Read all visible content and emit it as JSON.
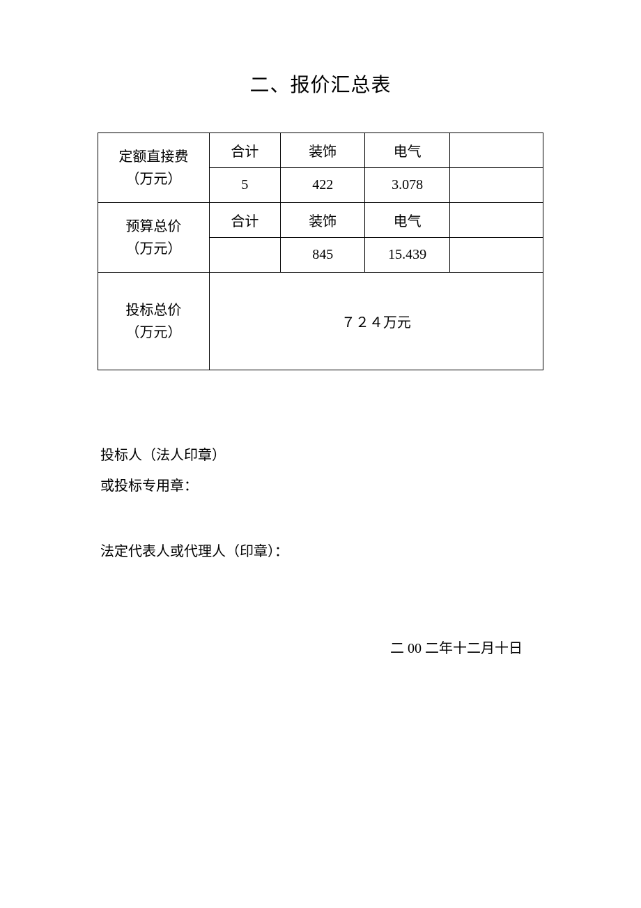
{
  "title": "二、报价汇总表",
  "table": {
    "row1": {
      "label": "定额直接费\n（万元）",
      "headers": {
        "c1": "合计",
        "c2": "装饰",
        "c3": "电气",
        "c4": ""
      },
      "values": {
        "c1": "5",
        "c2": "422",
        "c3": "3.078",
        "c4": ""
      }
    },
    "row2": {
      "label": "预算总价\n（万元）",
      "headers": {
        "c1": "合计",
        "c2": "装饰",
        "c3": "电气",
        "c4": ""
      },
      "values": {
        "c1": "",
        "c2": "845",
        "c3": "15.439",
        "c4": ""
      }
    },
    "row3": {
      "label": "投标总价\n（万元）",
      "merged_value": "７２４万元"
    }
  },
  "signatures": {
    "line1": "投标人（法人印章）",
    "line2": "或投标专用章：",
    "line3": "法定代表人或代理人（印章）："
  },
  "date": "二 00 二年十二月十日",
  "style": {
    "background_color": "#ffffff",
    "text_color": "#000000",
    "border_color": "#000000",
    "title_fontsize": 28,
    "body_fontsize": 20,
    "font_family": "SimSun"
  }
}
